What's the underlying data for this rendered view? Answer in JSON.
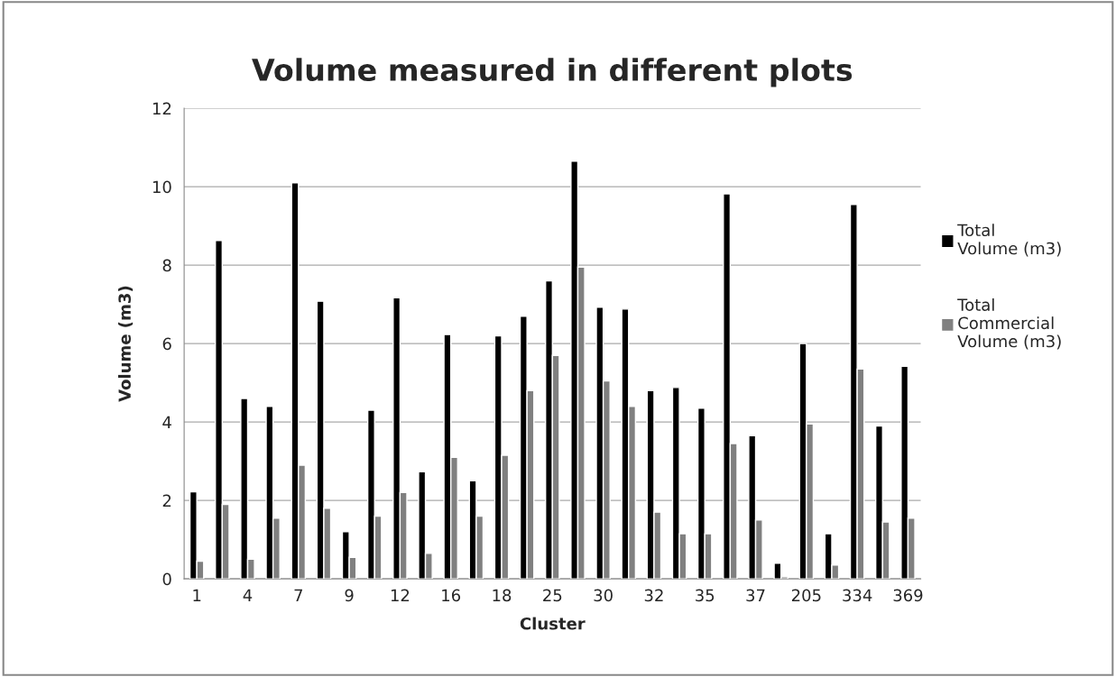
{
  "chart_data": {
    "type": "bar",
    "title": "Volume measured in different plots",
    "xlabel": "Cluster",
    "ylabel": "Volume (m3)",
    "categories": [
      "1",
      null,
      "4",
      null,
      "7",
      null,
      "9",
      null,
      "12",
      null,
      "16",
      null,
      "18",
      null,
      "25",
      null,
      "30",
      null,
      "32",
      null,
      "35",
      null,
      "37",
      null,
      "205",
      null,
      "334",
      null,
      "369"
    ],
    "series": [
      {
        "name": "Total Volume (m3)",
        "color": "#000000",
        "values": [
          2.22,
          8.63,
          4.6,
          4.4,
          10.1,
          7.08,
          1.2,
          4.3,
          7.17,
          2.73,
          6.23,
          2.5,
          6.2,
          6.7,
          7.6,
          10.65,
          6.93,
          6.88,
          4.8,
          4.88,
          4.35,
          9.82,
          3.65,
          0.4,
          6.0,
          1.15,
          9.55,
          3.9,
          5.42
        ]
      },
      {
        "name": "Total Commercial Volume (m3)",
        "color": "#808080",
        "values": [
          0.45,
          1.9,
          0.5,
          1.55,
          2.9,
          1.8,
          0.55,
          1.6,
          2.2,
          0.65,
          3.1,
          1.6,
          3.15,
          4.8,
          5.7,
          7.95,
          5.05,
          4.4,
          1.7,
          1.15,
          1.15,
          3.45,
          1.5,
          0.05,
          3.95,
          0.35,
          5.35,
          1.45,
          1.55
        ]
      }
    ],
    "ylim": [
      0,
      12
    ],
    "yticks": [
      0,
      2,
      4,
      6,
      8,
      10,
      12
    ],
    "grid": "y",
    "legend": "right"
  }
}
